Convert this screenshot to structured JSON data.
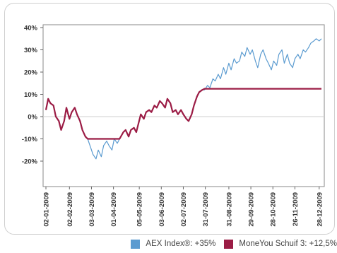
{
  "chart_data": {
    "type": "line",
    "ylim": [
      -30,
      40
    ],
    "yticks": [
      "40%",
      "30%",
      "20%",
      "10%",
      "0%",
      "-10%",
      "-20%"
    ],
    "ytick_values": [
      40,
      30,
      20,
      10,
      0,
      -10,
      -20
    ],
    "xlim": [
      "2009-01-02",
      "2009-12-31"
    ],
    "xticks": [
      "02-01-2009",
      "02-02-2009",
      "03-03-2009",
      "01-04-2009",
      "05-05-2009",
      "03-06-2009",
      "02-07-2009",
      "31-07-2009",
      "31-08-2009",
      "29-09-2009",
      "28-10-2009",
      "26-11-2009",
      "28-12-2009"
    ],
    "xtick_dates": [
      "2009-01-02",
      "2009-02-02",
      "2009-03-03",
      "2009-04-01",
      "2009-05-05",
      "2009-06-03",
      "2009-07-02",
      "2009-07-31",
      "2009-08-31",
      "2009-09-29",
      "2009-10-28",
      "2009-11-26",
      "2009-12-28"
    ],
    "grid": "zero-line only",
    "legend_position": "bottom-right",
    "series": [
      {
        "name": "AEX Index®: +35%",
        "color": "#5b9bd0",
        "points": [
          [
            "2009-01-02",
            3
          ],
          [
            "2009-01-05",
            8
          ],
          [
            "2009-01-08",
            6
          ],
          [
            "2009-01-12",
            5
          ],
          [
            "2009-01-15",
            0
          ],
          [
            "2009-01-19",
            -2
          ],
          [
            "2009-01-22",
            -6
          ],
          [
            "2009-01-26",
            -2
          ],
          [
            "2009-01-29",
            4
          ],
          [
            "2009-02-02",
            -1
          ],
          [
            "2009-02-05",
            2
          ],
          [
            "2009-02-09",
            4
          ],
          [
            "2009-02-12",
            1
          ],
          [
            "2009-02-16",
            -2
          ],
          [
            "2009-02-19",
            -6
          ],
          [
            "2009-02-23",
            -9
          ],
          [
            "2009-02-26",
            -10
          ],
          [
            "2009-03-02",
            -14
          ],
          [
            "2009-03-05",
            -17
          ],
          [
            "2009-03-09",
            -19
          ],
          [
            "2009-03-12",
            -15
          ],
          [
            "2009-03-16",
            -18
          ],
          [
            "2009-03-19",
            -13
          ],
          [
            "2009-03-23",
            -11
          ],
          [
            "2009-03-26",
            -13
          ],
          [
            "2009-03-30",
            -15
          ],
          [
            "2009-04-02",
            -10
          ],
          [
            "2009-04-06",
            -12
          ],
          [
            "2009-04-09",
            -10
          ],
          [
            "2009-04-14",
            -7
          ],
          [
            "2009-04-17",
            -6
          ],
          [
            "2009-04-21",
            -9
          ],
          [
            "2009-04-24",
            -6
          ],
          [
            "2009-04-28",
            -5
          ],
          [
            "2009-05-01",
            -7
          ],
          [
            "2009-05-04",
            -3
          ],
          [
            "2009-05-07",
            1
          ],
          [
            "2009-05-11",
            -1
          ],
          [
            "2009-05-14",
            2
          ],
          [
            "2009-05-18",
            3
          ],
          [
            "2009-05-21",
            2
          ],
          [
            "2009-05-25",
            5
          ],
          [
            "2009-05-28",
            4
          ],
          [
            "2009-06-01",
            7
          ],
          [
            "2009-06-04",
            6
          ],
          [
            "2009-06-08",
            4
          ],
          [
            "2009-06-11",
            8
          ],
          [
            "2009-06-15",
            6
          ],
          [
            "2009-06-18",
            2
          ],
          [
            "2009-06-22",
            3
          ],
          [
            "2009-06-25",
            1
          ],
          [
            "2009-06-29",
            3
          ],
          [
            "2009-07-02",
            1
          ],
          [
            "2009-07-06",
            -1
          ],
          [
            "2009-07-09",
            -2
          ],
          [
            "2009-07-13",
            1
          ],
          [
            "2009-07-16",
            5
          ],
          [
            "2009-07-20",
            9
          ],
          [
            "2009-07-23",
            11
          ],
          [
            "2009-07-27",
            12
          ],
          [
            "2009-07-30",
            12
          ],
          [
            "2009-08-03",
            14
          ],
          [
            "2009-08-06",
            13
          ],
          [
            "2009-08-10",
            17
          ],
          [
            "2009-08-13",
            16
          ],
          [
            "2009-08-17",
            19
          ],
          [
            "2009-08-20",
            17
          ],
          [
            "2009-08-24",
            22
          ],
          [
            "2009-08-27",
            19
          ],
          [
            "2009-08-31",
            24
          ],
          [
            "2009-09-03",
            21
          ],
          [
            "2009-09-07",
            26
          ],
          [
            "2009-09-10",
            24
          ],
          [
            "2009-09-14",
            25
          ],
          [
            "2009-09-17",
            29
          ],
          [
            "2009-09-21",
            27
          ],
          [
            "2009-09-24",
            31
          ],
          [
            "2009-09-28",
            28
          ],
          [
            "2009-10-01",
            30
          ],
          [
            "2009-10-05",
            25
          ],
          [
            "2009-10-08",
            22
          ],
          [
            "2009-10-12",
            28
          ],
          [
            "2009-10-15",
            30
          ],
          [
            "2009-10-19",
            26
          ],
          [
            "2009-10-22",
            24
          ],
          [
            "2009-10-26",
            21
          ],
          [
            "2009-10-29",
            25
          ],
          [
            "2009-11-02",
            23
          ],
          [
            "2009-11-05",
            28
          ],
          [
            "2009-11-09",
            30
          ],
          [
            "2009-11-12",
            24
          ],
          [
            "2009-11-16",
            28
          ],
          [
            "2009-11-19",
            24
          ],
          [
            "2009-11-23",
            22
          ],
          [
            "2009-11-26",
            26
          ],
          [
            "2009-11-30",
            28
          ],
          [
            "2009-12-03",
            26
          ],
          [
            "2009-12-07",
            30
          ],
          [
            "2009-12-10",
            29
          ],
          [
            "2009-12-14",
            31
          ],
          [
            "2009-12-17",
            33
          ],
          [
            "2009-12-21",
            34
          ],
          [
            "2009-12-24",
            35
          ],
          [
            "2009-12-28",
            34
          ],
          [
            "2009-12-31",
            35
          ]
        ]
      },
      {
        "name": "MoneYou Schuif 3: +12,5%",
        "color": "#9b1c45",
        "points": [
          [
            "2009-01-02",
            3
          ],
          [
            "2009-01-05",
            8
          ],
          [
            "2009-01-08",
            6
          ],
          [
            "2009-01-12",
            5
          ],
          [
            "2009-01-15",
            0
          ],
          [
            "2009-01-19",
            -2
          ],
          [
            "2009-01-22",
            -6
          ],
          [
            "2009-01-26",
            -2
          ],
          [
            "2009-01-29",
            4
          ],
          [
            "2009-02-02",
            -1
          ],
          [
            "2009-02-05",
            2
          ],
          [
            "2009-02-09",
            4
          ],
          [
            "2009-02-12",
            1
          ],
          [
            "2009-02-16",
            -2
          ],
          [
            "2009-02-19",
            -6
          ],
          [
            "2009-02-23",
            -9
          ],
          [
            "2009-02-26",
            -10
          ],
          [
            "2009-03-02",
            -10
          ],
          [
            "2009-03-16",
            -10
          ],
          [
            "2009-03-30",
            -10
          ],
          [
            "2009-04-06",
            -10
          ],
          [
            "2009-04-09",
            -10
          ],
          [
            "2009-04-14",
            -7
          ],
          [
            "2009-04-17",
            -6
          ],
          [
            "2009-04-21",
            -9
          ],
          [
            "2009-04-24",
            -6
          ],
          [
            "2009-04-28",
            -5
          ],
          [
            "2009-05-01",
            -7
          ],
          [
            "2009-05-04",
            -3
          ],
          [
            "2009-05-07",
            1
          ],
          [
            "2009-05-11",
            -1
          ],
          [
            "2009-05-14",
            2
          ],
          [
            "2009-05-18",
            3
          ],
          [
            "2009-05-21",
            2
          ],
          [
            "2009-05-25",
            5
          ],
          [
            "2009-05-28",
            4
          ],
          [
            "2009-06-01",
            7
          ],
          [
            "2009-06-04",
            6
          ],
          [
            "2009-06-08",
            4
          ],
          [
            "2009-06-11",
            8
          ],
          [
            "2009-06-15",
            6
          ],
          [
            "2009-06-18",
            2
          ],
          [
            "2009-06-22",
            3
          ],
          [
            "2009-06-25",
            1
          ],
          [
            "2009-06-29",
            3
          ],
          [
            "2009-07-02",
            1
          ],
          [
            "2009-07-06",
            -1
          ],
          [
            "2009-07-09",
            -2
          ],
          [
            "2009-07-13",
            1
          ],
          [
            "2009-07-16",
            5
          ],
          [
            "2009-07-20",
            9
          ],
          [
            "2009-07-23",
            11
          ],
          [
            "2009-07-27",
            12
          ],
          [
            "2009-07-30",
            12.5
          ],
          [
            "2009-12-31",
            12.5
          ]
        ]
      }
    ]
  }
}
